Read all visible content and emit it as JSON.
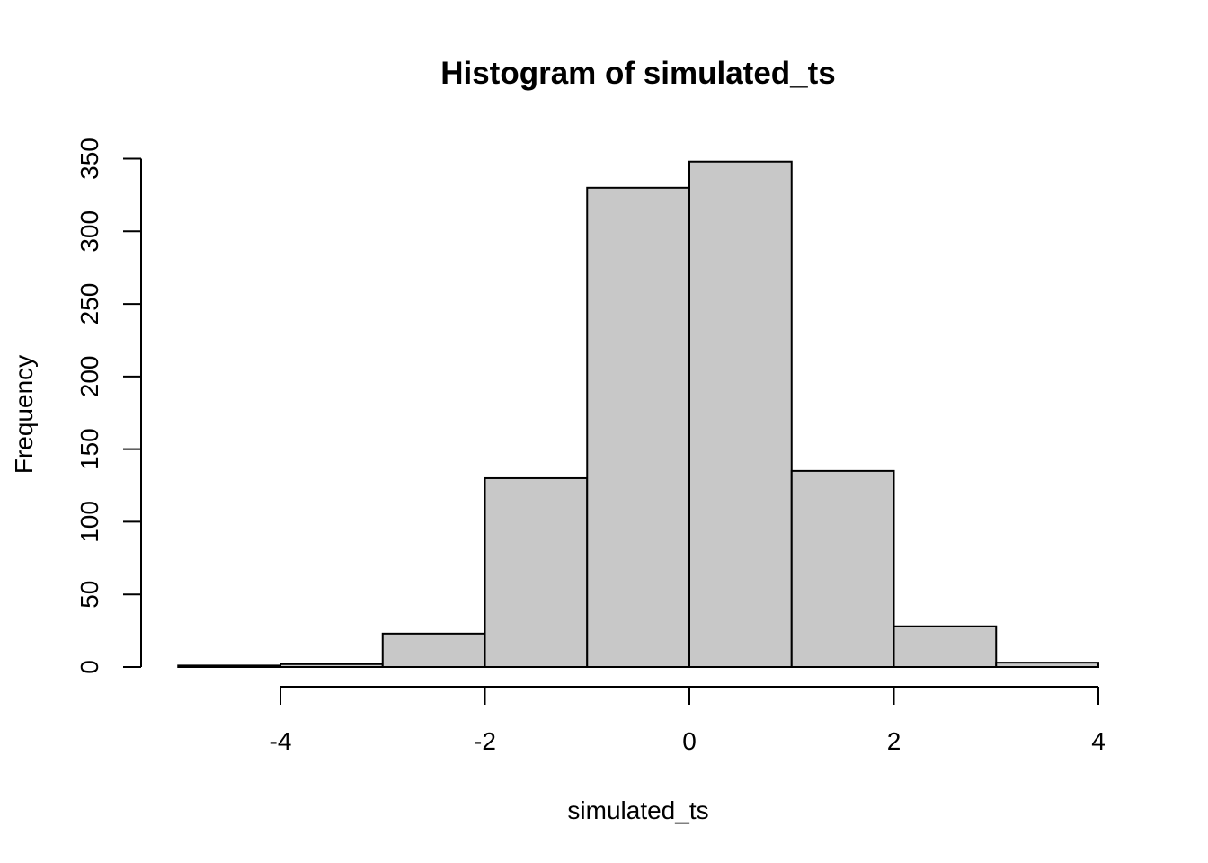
{
  "chart_data": {
    "type": "bar",
    "title": "Histogram of simulated_ts",
    "xlabel": "simulated_ts",
    "ylabel": "Frequency",
    "bins": [
      {
        "start": -5,
        "end": -4,
        "count": 1
      },
      {
        "start": -4,
        "end": -3,
        "count": 2
      },
      {
        "start": -3,
        "end": -2,
        "count": 23
      },
      {
        "start": -2,
        "end": -1,
        "count": 130
      },
      {
        "start": -1,
        "end": 0,
        "count": 330
      },
      {
        "start": 0,
        "end": 1,
        "count": 348
      },
      {
        "start": 1,
        "end": 2,
        "count": 135
      },
      {
        "start": 2,
        "end": 3,
        "count": 28
      },
      {
        "start": 3,
        "end": 4,
        "count": 3
      }
    ],
    "x_ticks": [
      -4,
      -2,
      0,
      2,
      4
    ],
    "y_ticks": [
      0,
      50,
      100,
      150,
      200,
      250,
      300,
      350
    ],
    "xlim": [
      -5,
      4
    ],
    "ylim": [
      0,
      350
    ],
    "grid": false,
    "bar_fill": "#c8c8c8",
    "bar_stroke": "#000000"
  }
}
